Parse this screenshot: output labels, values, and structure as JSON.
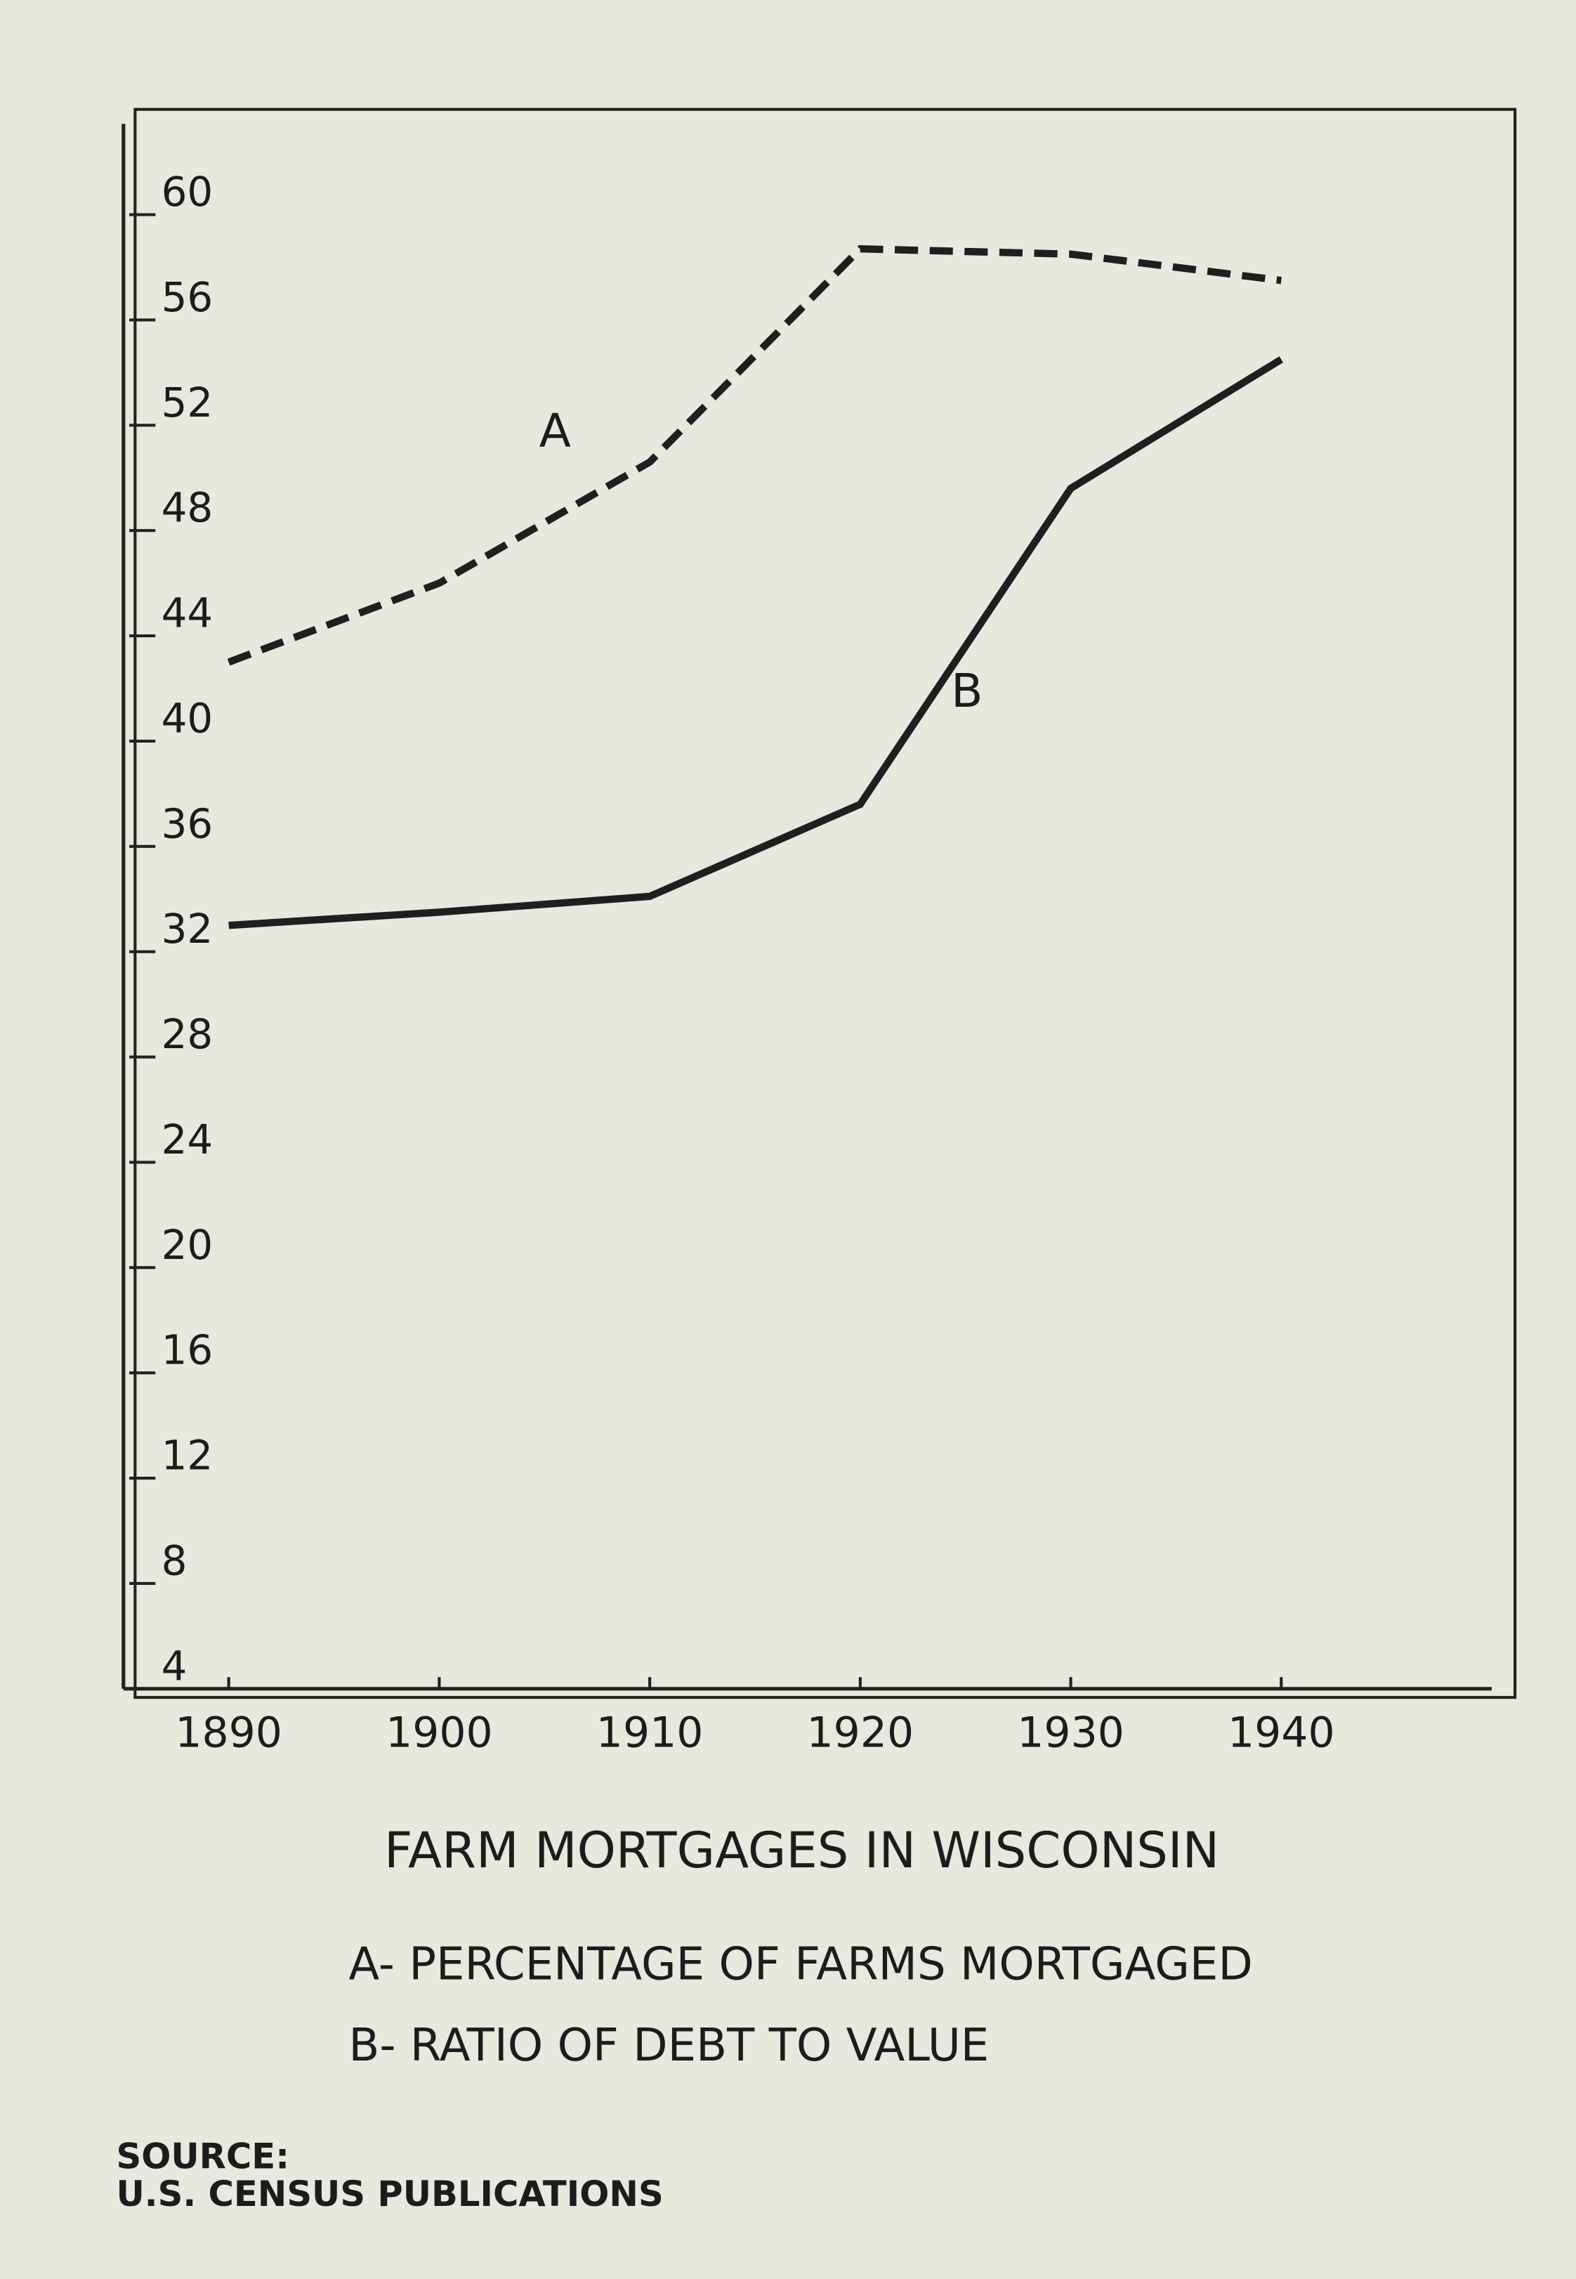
{
  "chart_data": {
    "type": "line",
    "title": "FARM MORTGAGES IN WISCONSIN",
    "legend": [
      "A- PERCENTAGE OF FARMS MORTGAGED",
      "B- RATIO OF DEBT TO VALUE"
    ],
    "source": [
      "SOURCE:",
      "U.S. CENSUS PUBLICATIONS"
    ],
    "x": [
      1890,
      1900,
      1910,
      1920,
      1930,
      1940
    ],
    "xlim": [
      1885,
      1950
    ],
    "xticks": [
      1890,
      1900,
      1910,
      1920,
      1930,
      1940
    ],
    "ylim": [
      4,
      64
    ],
    "yticks": [
      4,
      8,
      12,
      16,
      20,
      24,
      28,
      32,
      36,
      40,
      44,
      48,
      52,
      56,
      60
    ],
    "grid": false,
    "series": [
      {
        "name": "A",
        "color": "#1f1f1f",
        "style": "dashed",
        "values": [
          43,
          46,
          50.6,
          58.7,
          58.5,
          57.5
        ]
      },
      {
        "name": "B",
        "color": "#1f1f1f",
        "style": "solid",
        "values": [
          33,
          33.5,
          34.1,
          37.6,
          49.6,
          54.5
        ]
      }
    ]
  }
}
